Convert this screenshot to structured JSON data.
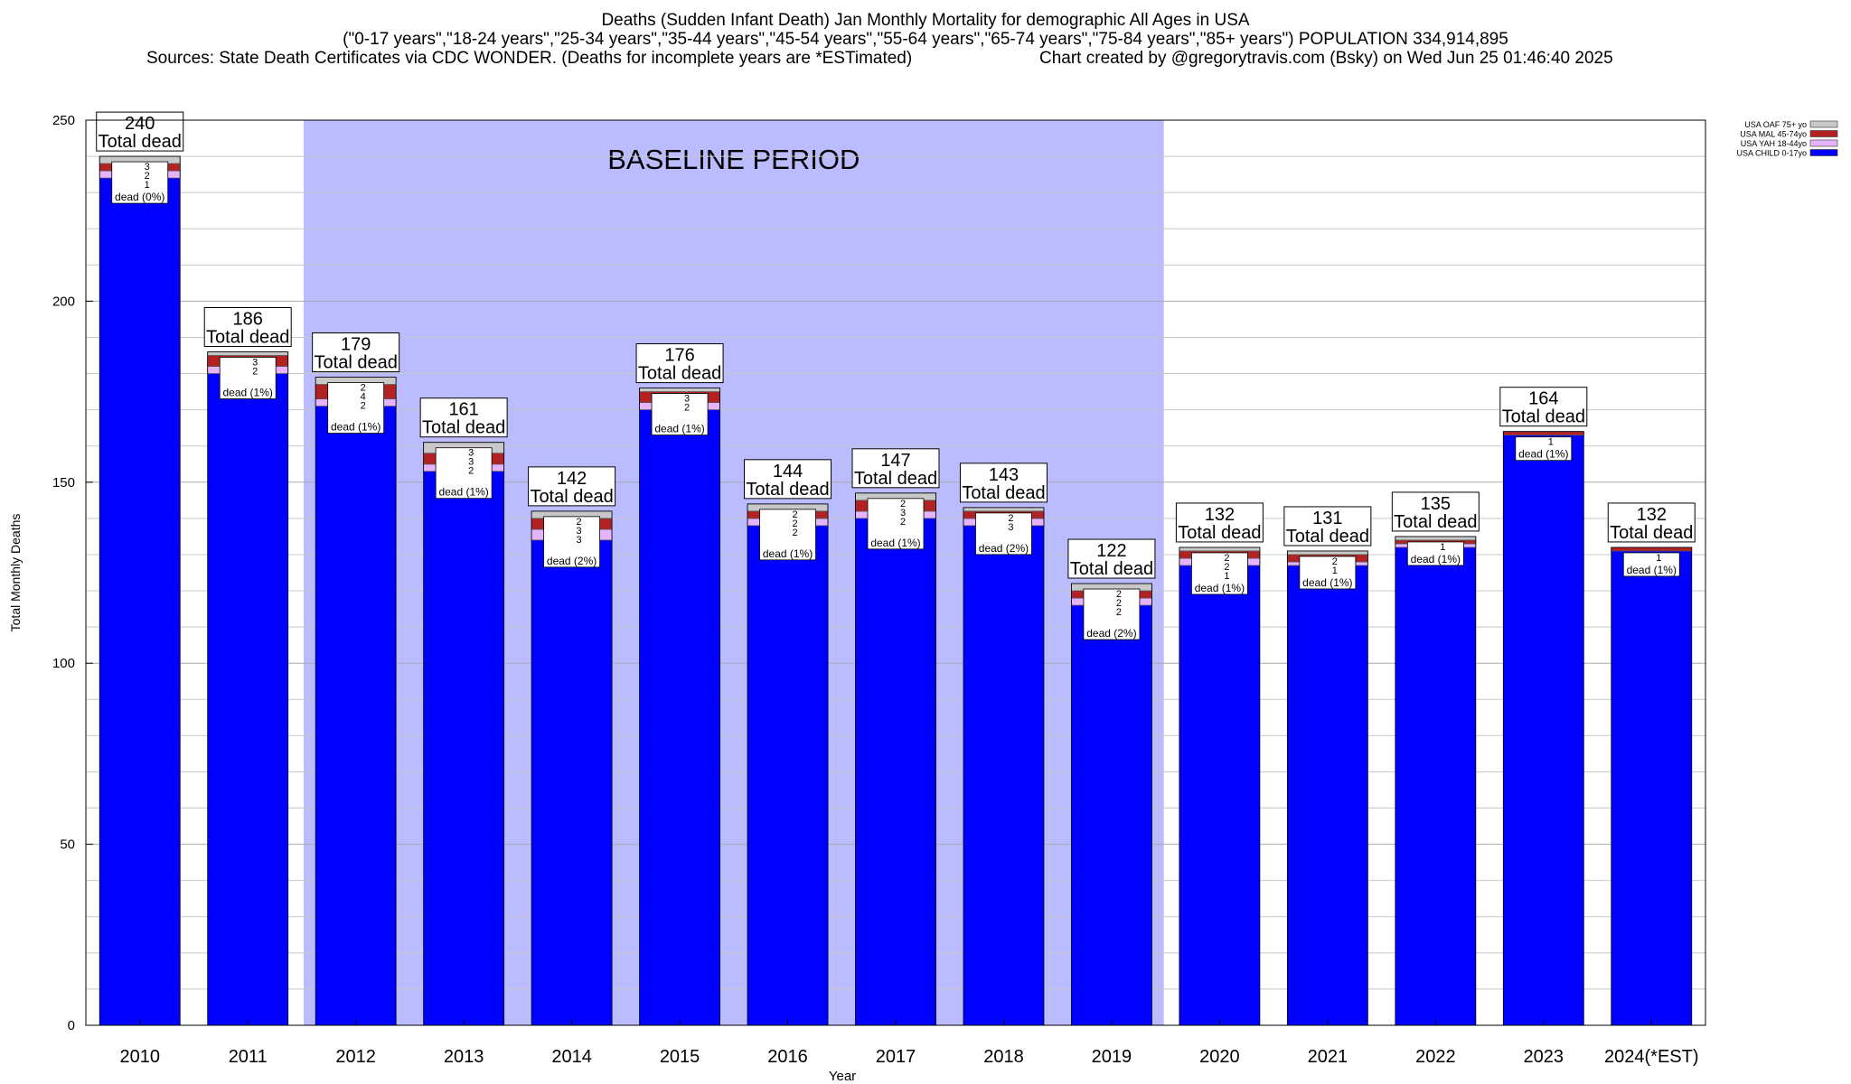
{
  "header": {
    "title": "Deaths (Sudden Infant Death) Jan Monthly Mortality for demographic All Ages in USA",
    "subtitle": "(\"0-17 years\",\"18-24 years\",\"25-34 years\",\"35-44 years\",\"45-54 years\",\"55-64 years\",\"65-74 years\",\"75-84 years\",\"85+ years\") POPULATION 334,914,895",
    "sources": "Sources: State Death Certificates via CDC WONDER. (Deaths for incomplete years are *ESTimated)",
    "credit": "Chart created by @gregorytravis.com (Bsky) on Wed Jun 25 01:46:40 2025"
  },
  "chart_data": {
    "type": "bar",
    "stacked": true,
    "xlabel": "Year",
    "ylabel": "Total Monthly Deaths",
    "ylim": [
      0,
      250
    ],
    "yticks": [
      0,
      50,
      100,
      150,
      200,
      250
    ],
    "grid": true,
    "legend_position": "top-right",
    "categories": [
      "2010",
      "2011",
      "2012",
      "2013",
      "2014",
      "2015",
      "2016",
      "2017",
      "2018",
      "2019",
      "2020",
      "2021",
      "2022",
      "2023",
      "2024(*EST)"
    ],
    "totals": [
      240,
      186,
      179,
      161,
      142,
      176,
      144,
      147,
      143,
      122,
      132,
      131,
      135,
      164,
      132
    ],
    "total_label": "Total dead",
    "series": [
      {
        "name": "USA CHILD 0-17yo",
        "color": "#0000ff",
        "values": [
          234,
          180,
          171,
          153,
          134,
          170,
          138,
          140,
          138,
          116,
          127,
          127,
          132,
          163,
          131
        ]
      },
      {
        "name": "USA YAH 18-44yo",
        "color": "#e6b3ff",
        "values": [
          2,
          2,
          2,
          2,
          3,
          2,
          2,
          2,
          2,
          2,
          2,
          1,
          1,
          0,
          0
        ]
      },
      {
        "name": "USA MAL 45-74yo",
        "color": "#b22222",
        "values": [
          2,
          3,
          4,
          3,
          3,
          3,
          2,
          3,
          2,
          2,
          2,
          2,
          1,
          1,
          1
        ]
      },
      {
        "name": "USA OAF 75+ yo",
        "color": "#c8c8c8",
        "values": [
          2,
          1,
          2,
          3,
          2,
          1,
          2,
          2,
          1,
          2,
          1,
          1,
          1,
          0,
          0
        ]
      }
    ],
    "segment_labels": [
      [
        "1",
        "2",
        "3"
      ],
      [
        "",
        "2",
        "3"
      ],
      [
        "",
        "2",
        "4",
        "2"
      ],
      [
        "",
        "2",
        "3",
        "3"
      ],
      [
        "",
        "3",
        "3",
        "2"
      ],
      [
        "",
        "2",
        "3"
      ],
      [
        "",
        "2",
        "2",
        "2"
      ],
      [
        "",
        "2",
        "3",
        "2"
      ],
      [
        "",
        "3",
        "2"
      ],
      [
        "",
        "2",
        "2",
        "2"
      ],
      [
        "1",
        "2",
        "2"
      ],
      [
        "1",
        "2"
      ],
      [
        "1"
      ],
      [
        "1"
      ],
      [
        "1"
      ]
    ],
    "share_labels": [
      "dead (0%)",
      "dead (1%)",
      "dead (1%)",
      "dead (1%)",
      "dead (2%)",
      "dead (1%)",
      "dead (1%)",
      "dead (1%)",
      "dead (2%)",
      "dead (2%)",
      "dead (1%)",
      "dead (1%)",
      "dead (1%)",
      "dead (1%)",
      "dead (1%)"
    ],
    "annotations": [
      {
        "text": "BASELINE PERIOD",
        "from_category": "2012",
        "to_category": "2019",
        "color": "#bbbbff"
      }
    ]
  }
}
